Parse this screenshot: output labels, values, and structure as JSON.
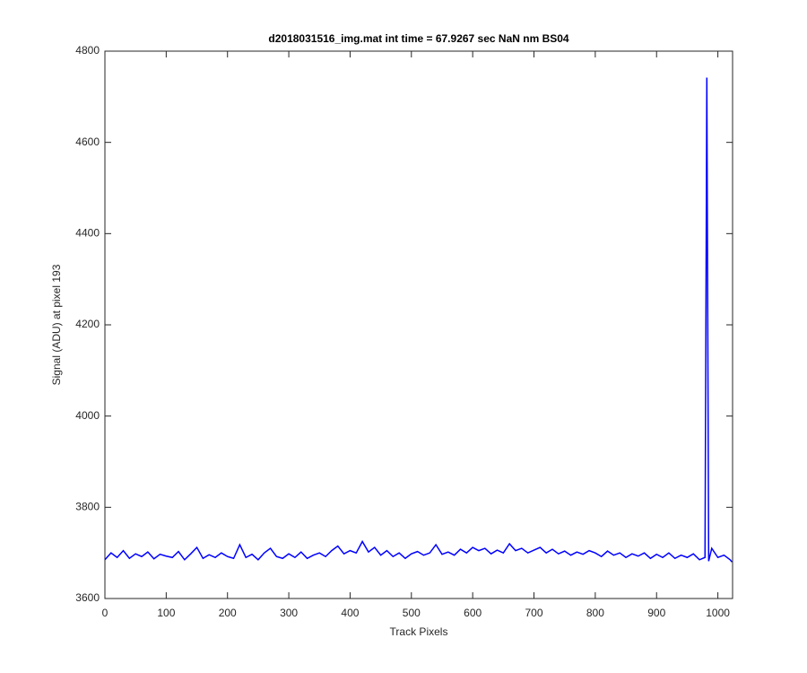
{
  "chart_data": {
    "type": "line",
    "title": "d2018031516_img.mat int time = 67.9267 sec  NaN nm BS04",
    "xlabel": "Track Pixels",
    "ylabel": "Signal (ADU) at pixel 193",
    "xlim": [
      0,
      1024
    ],
    "ylim": [
      3600,
      4800
    ],
    "xticks": [
      0,
      100,
      200,
      300,
      400,
      500,
      600,
      700,
      800,
      900,
      1000
    ],
    "yticks": [
      3600,
      3800,
      4000,
      4200,
      4400,
      4600,
      4800
    ],
    "grid": false,
    "series": [
      {
        "color": "#0000ff",
        "x": [
          0,
          10,
          20,
          30,
          40,
          50,
          60,
          70,
          80,
          90,
          100,
          110,
          120,
          130,
          140,
          150,
          160,
          170,
          180,
          190,
          200,
          210,
          220,
          230,
          240,
          250,
          260,
          270,
          280,
          290,
          300,
          310,
          320,
          330,
          340,
          350,
          360,
          370,
          380,
          390,
          400,
          410,
          420,
          430,
          440,
          450,
          460,
          470,
          480,
          490,
          500,
          510,
          520,
          530,
          540,
          550,
          560,
          570,
          580,
          590,
          600,
          610,
          620,
          630,
          640,
          650,
          660,
          670,
          680,
          690,
          700,
          710,
          720,
          730,
          740,
          750,
          760,
          770,
          780,
          790,
          800,
          810,
          820,
          830,
          840,
          850,
          860,
          870,
          880,
          890,
          900,
          910,
          920,
          930,
          940,
          950,
          960,
          970,
          979,
          982,
          985,
          990,
          1000,
          1010,
          1020,
          1023
        ],
        "values": [
          3685,
          3700,
          3690,
          3705,
          3688,
          3698,
          3692,
          3702,
          3687,
          3697,
          3693,
          3690,
          3703,
          3685,
          3698,
          3712,
          3688,
          3696,
          3690,
          3700,
          3692,
          3688,
          3718,
          3690,
          3697,
          3685,
          3700,
          3710,
          3692,
          3688,
          3698,
          3690,
          3702,
          3688,
          3695,
          3700,
          3692,
          3705,
          3715,
          3698,
          3705,
          3700,
          3725,
          3702,
          3712,
          3695,
          3705,
          3692,
          3700,
          3688,
          3698,
          3703,
          3695,
          3700,
          3718,
          3697,
          3702,
          3695,
          3708,
          3700,
          3712,
          3705,
          3710,
          3698,
          3706,
          3700,
          3720,
          3705,
          3710,
          3700,
          3706,
          3712,
          3700,
          3708,
          3698,
          3704,
          3695,
          3702,
          3697,
          3705,
          3700,
          3692,
          3704,
          3695,
          3700,
          3690,
          3698,
          3693,
          3700,
          3688,
          3697,
          3690,
          3700,
          3688,
          3695,
          3690,
          3698,
          3685,
          3690,
          4742,
          3682,
          3710,
          3690,
          3695,
          3685,
          3680
        ]
      }
    ]
  }
}
